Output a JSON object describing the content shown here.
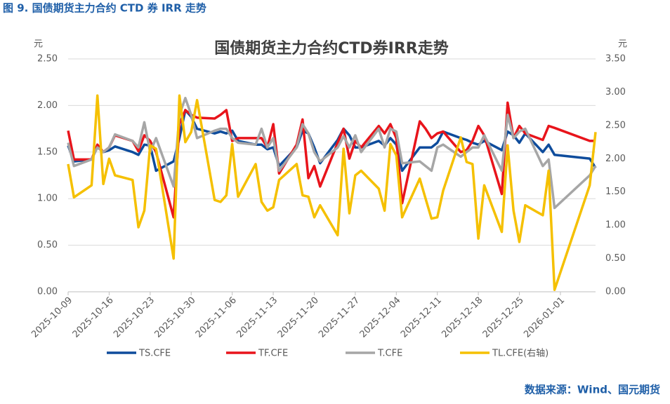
{
  "header": "图 9. 国债期货主力合约 CTD 券 IRR 走势",
  "source": "数据来源：Wind、国元期货",
  "chart_data": {
    "type": "line",
    "title": "国债期货主力合约CTD券IRR走势",
    "y_unit": "元",
    "y2_unit": "元",
    "x": [
      "2025-10-09",
      "2025-10-10",
      "2025-10-13",
      "2025-10-14",
      "2025-10-15",
      "2025-10-16",
      "2025-10-17",
      "2025-10-20",
      "2025-10-21",
      "2025-10-22",
      "2025-10-23",
      "2025-10-24",
      "2025-10-27",
      "2025-10-28",
      "2025-10-29",
      "2025-10-30",
      "2025-10-31",
      "2025-11-03",
      "2025-11-04",
      "2025-11-05",
      "2025-11-06",
      "2025-11-07",
      "2025-11-10",
      "2025-11-11",
      "2025-11-12",
      "2025-11-13",
      "2025-11-14",
      "2025-11-17",
      "2025-11-18",
      "2025-11-19",
      "2025-11-20",
      "2025-11-21",
      "2025-11-24",
      "2025-11-25",
      "2025-11-26",
      "2025-11-27",
      "2025-11-28",
      "2025-12-01",
      "2025-12-02",
      "2025-12-03",
      "2025-12-04",
      "2025-12-05",
      "2025-12-08",
      "2025-12-09",
      "2025-12-10",
      "2025-12-11",
      "2025-12-12",
      "2025-12-15",
      "2025-12-16",
      "2025-12-17",
      "2025-12-18",
      "2025-12-19",
      "2025-12-22",
      "2025-12-23",
      "2025-12-24",
      "2025-12-25",
      "2025-12-26",
      "2025-12-29",
      "2025-12-30",
      "2025-12-31",
      "2026-01-06",
      "2026-01-07"
    ],
    "xlim": [
      "2025-10-09",
      "2026-01-07"
    ],
    "xticks": [
      "2025-10-09",
      "2025-10-16",
      "2025-10-23",
      "2025-10-30",
      "2025-11-06",
      "2025-11-13",
      "2025-11-20",
      "2025-11-27",
      "2025-12-04",
      "2025-12-11",
      "2025-12-18",
      "2025-12-25",
      "2026-01-01"
    ],
    "ylim": [
      0,
      2.5
    ],
    "yticks": [
      {
        "value": 0,
        "label": "0.00"
      },
      {
        "value": 0.5,
        "label": "0.50"
      },
      {
        "value": 1,
        "label": "1.00"
      },
      {
        "value": 1.5,
        "label": "1.50"
      },
      {
        "value": 2,
        "label": "2.00"
      },
      {
        "value": 2.5,
        "label": "2.50"
      }
    ],
    "y2lim": [
      0,
      3.5
    ],
    "y2ticks": [
      {
        "value": 0,
        "label": "0.00"
      },
      {
        "value": 0.5,
        "label": "0.50"
      },
      {
        "value": 1,
        "label": "1.00"
      },
      {
        "value": 1.5,
        "label": "1.50"
      },
      {
        "value": 2,
        "label": "2.00"
      },
      {
        "value": 2.5,
        "label": "2.50"
      },
      {
        "value": 3,
        "label": "3.00"
      },
      {
        "value": 3.5,
        "label": "3.50"
      }
    ],
    "grid": true,
    "legend": "bottom",
    "series": [
      {
        "name": "TS.CFE",
        "color": "#0e4c9c",
        "values": [
          1.57,
          1.4,
          1.42,
          1.57,
          1.5,
          1.52,
          1.56,
          1.5,
          1.47,
          1.58,
          1.57,
          1.3,
          1.4,
          1.65,
          1.95,
          1.88,
          1.75,
          1.7,
          1.72,
          1.7,
          1.73,
          1.62,
          1.58,
          1.58,
          1.53,
          1.55,
          1.35,
          1.55,
          1.73,
          1.7,
          1.55,
          1.38,
          1.63,
          1.75,
          1.68,
          1.55,
          1.55,
          1.62,
          1.57,
          1.65,
          1.58,
          1.3,
          1.55,
          1.55,
          1.55,
          1.6,
          1.72,
          1.65,
          1.63,
          1.6,
          1.58,
          1.62,
          1.52,
          1.72,
          1.68,
          1.6,
          1.7,
          1.5,
          1.58,
          1.47,
          1.43,
          1.33
        ]
      },
      {
        "name": "TF.CFE",
        "color": "#e8141b",
        "values": [
          1.73,
          1.42,
          1.42,
          1.58,
          1.5,
          1.55,
          1.68,
          1.62,
          1.51,
          1.68,
          1.62,
          1.5,
          0.8,
          1.8,
          1.95,
          1.9,
          1.87,
          1.86,
          1.9,
          1.95,
          1.62,
          1.65,
          1.65,
          1.65,
          1.55,
          1.8,
          1.27,
          1.58,
          1.85,
          1.22,
          1.35,
          1.13,
          1.6,
          1.75,
          1.43,
          1.62,
          1.55,
          1.78,
          1.7,
          1.8,
          1.65,
          0.95,
          1.83,
          1.75,
          1.65,
          1.7,
          1.72,
          1.5,
          1.52,
          1.62,
          1.78,
          1.68,
          1.05,
          2.03,
          1.65,
          1.78,
          1.7,
          1.63,
          1.78,
          1.76,
          1.62,
          1.62
        ]
      },
      {
        "name": "T.CFE",
        "color": "#a6a6a6",
        "values": [
          1.6,
          1.35,
          1.42,
          1.55,
          1.5,
          1.55,
          1.69,
          1.62,
          1.55,
          1.82,
          1.5,
          1.65,
          1.13,
          1.9,
          2.08,
          1.9,
          1.65,
          1.73,
          1.75,
          1.75,
          1.65,
          1.6,
          1.58,
          1.75,
          1.55,
          1.65,
          1.3,
          1.55,
          1.8,
          1.7,
          1.5,
          1.4,
          1.55,
          1.67,
          1.55,
          1.68,
          1.5,
          1.75,
          1.55,
          1.75,
          1.72,
          1.38,
          1.4,
          1.35,
          1.3,
          1.55,
          1.58,
          1.45,
          1.5,
          1.55,
          1.55,
          1.68,
          1.3,
          1.9,
          1.65,
          1.72,
          1.75,
          1.35,
          1.42,
          0.9,
          1.25,
          1.35
        ]
      },
      {
        "name": "TL.CFE(右轴)",
        "color": "#f5c000",
        "axis": "y2",
        "values": [
          1.92,
          1.42,
          1.6,
          2.95,
          1.62,
          2.0,
          1.75,
          1.68,
          0.97,
          1.22,
          2.2,
          2.15,
          0.5,
          2.95,
          2.25,
          2.4,
          2.88,
          1.38,
          1.35,
          1.45,
          2.22,
          1.43,
          1.92,
          1.35,
          1.22,
          1.27,
          1.68,
          1.92,
          1.45,
          1.43,
          1.12,
          1.3,
          0.85,
          2.15,
          1.18,
          1.75,
          1.82,
          1.55,
          1.22,
          2.22,
          2.05,
          1.12,
          1.7,
          1.4,
          1.1,
          1.12,
          1.52,
          2.32,
          1.95,
          1.92,
          0.8,
          1.6,
          0.9,
          2.2,
          1.22,
          0.75,
          1.3,
          1.15,
          1.82,
          0.03,
          1.6,
          2.4
        ]
      }
    ]
  }
}
